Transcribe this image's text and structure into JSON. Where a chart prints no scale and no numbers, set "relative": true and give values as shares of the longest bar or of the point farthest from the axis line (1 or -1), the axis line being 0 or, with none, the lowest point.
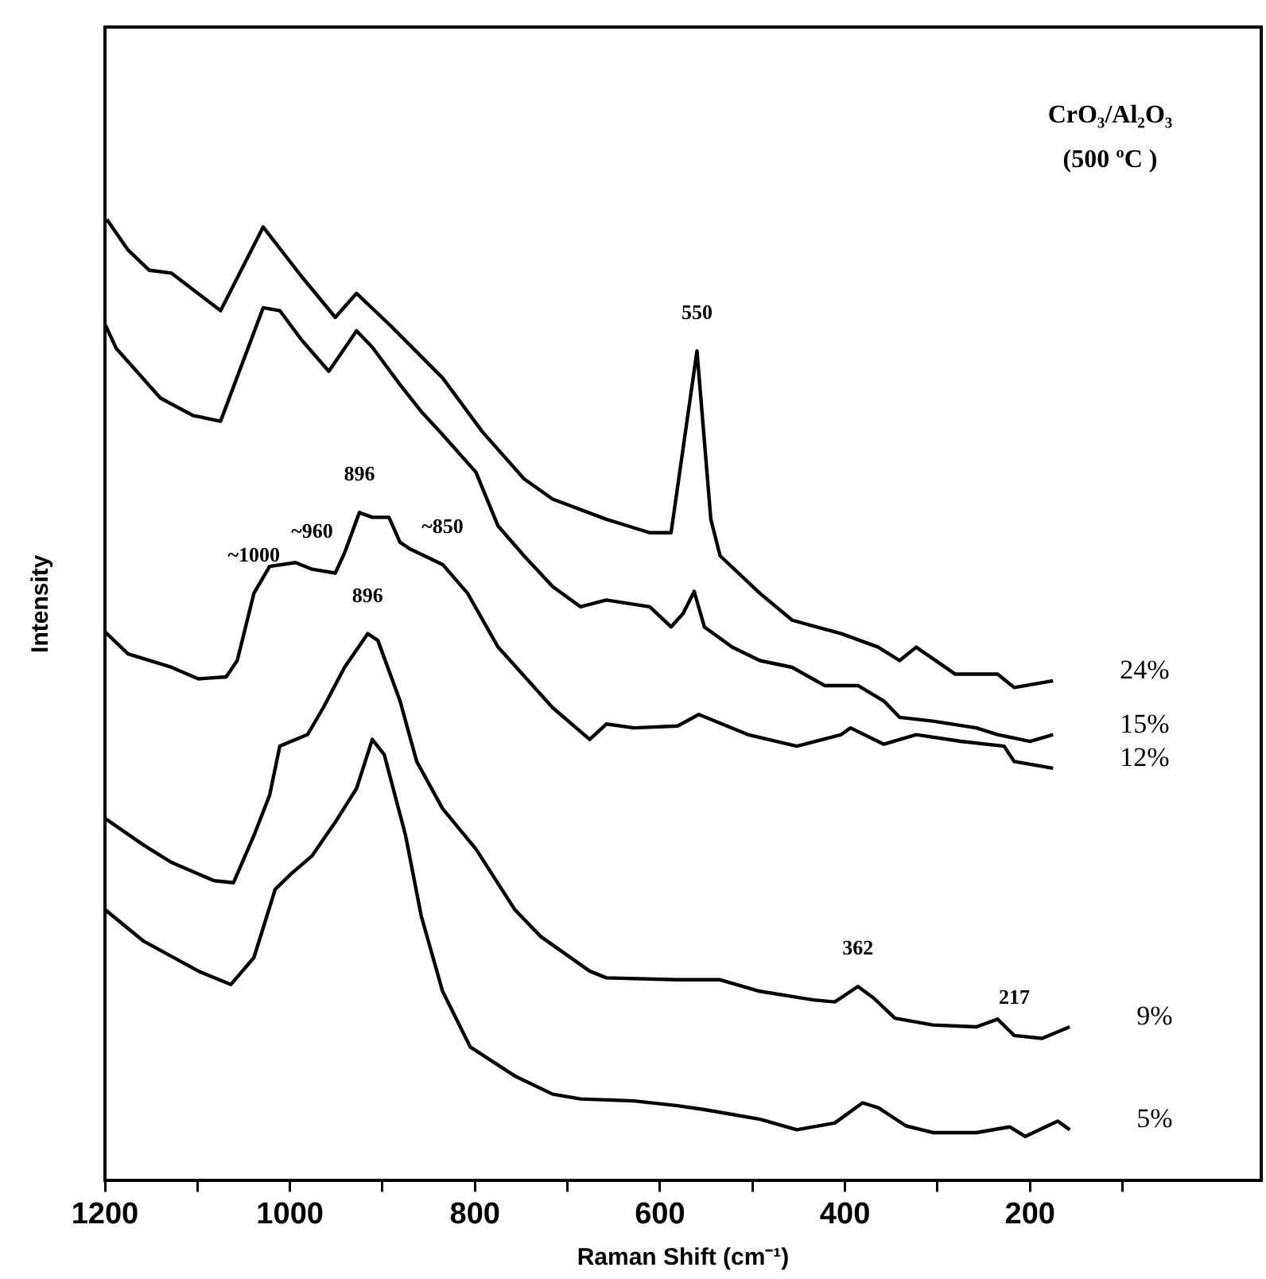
{
  "chart_data": {
    "type": "line",
    "title": "CrO₃/Al₂O₃",
    "subtitle": "(500 ºC )",
    "xlabel": "Raman Shift (cm⁻¹)",
    "ylabel": "Intensity",
    "relative": true,
    "xlim": [
      1200,
      -50
    ],
    "xticks": [
      1200,
      {
        "value": 1100,
        "label": null
      },
      1000,
      {
        "value": 900,
        "label": null
      },
      800,
      {
        "value": 700,
        "label": null
      },
      600,
      {
        "value": 500,
        "label": null
      },
      400,
      {
        "value": 300,
        "label": null
      },
      200,
      {
        "value": 100,
        "label": null
      }
    ],
    "grid": false,
    "legend": false,
    "marker": "none",
    "line_style": "solid",
    "series": [
      {
        "name": "24%",
        "color": "#000000",
        "x": [
          1198,
          1175,
          1152,
          1128,
          1075,
          1029,
          987,
          951,
          928,
          893,
          835,
          792,
          747,
          716,
          658,
          611,
          588,
          560,
          545,
          535,
          492,
          457,
          404,
          364,
          341,
          323,
          281,
          235,
          217,
          175
        ],
        "values": [
          1.0,
          0.968,
          0.947,
          0.944,
          0.905,
          0.992,
          0.94,
          0.898,
          0.923,
          0.891,
          0.835,
          0.779,
          0.73,
          0.709,
          0.688,
          0.674,
          0.674,
          0.863,
          0.688,
          0.65,
          0.611,
          0.583,
          0.569,
          0.555,
          0.541,
          0.555,
          0.527,
          0.527,
          0.513,
          0.52
        ]
      },
      {
        "name": "15%",
        "color": "#000000",
        "x": [
          1200,
          1188,
          1140,
          1105,
          1075,
          1029,
          1011,
          987,
          958,
          928,
          911,
          881,
          858,
          835,
          799,
          775,
          747,
          716,
          686,
          658,
          611,
          588,
          575,
          563,
          552,
          522,
          492,
          457,
          422,
          386,
          358,
          341,
          305,
          258,
          235,
          200,
          175
        ],
        "values": [
          0.891,
          0.866,
          0.814,
          0.796,
          0.79,
          0.908,
          0.905,
          0.874,
          0.842,
          0.884,
          0.867,
          0.828,
          0.8,
          0.776,
          0.737,
          0.681,
          0.65,
          0.618,
          0.597,
          0.604,
          0.597,
          0.576,
          0.59,
          0.613,
          0.576,
          0.555,
          0.541,
          0.534,
          0.515,
          0.515,
          0.499,
          0.482,
          0.478,
          0.471,
          0.464,
          0.457,
          0.464
        ]
      },
      {
        "name": "12%",
        "color": "#000000",
        "x": [
          1200,
          1175,
          1128,
          1099,
          1069,
          1057,
          1039,
          1022,
          994,
          976,
          951,
          941,
          925,
          911,
          893,
          881,
          870,
          835,
          808,
          775,
          716,
          676,
          658,
          628,
          581,
          558,
          505,
          452,
          404,
          394,
          358,
          323,
          275,
          228,
          217,
          175
        ],
        "values": [
          0.571,
          0.548,
          0.534,
          0.522,
          0.524,
          0.541,
          0.611,
          0.639,
          0.643,
          0.636,
          0.632,
          0.653,
          0.695,
          0.69,
          0.69,
          0.664,
          0.657,
          0.641,
          0.611,
          0.555,
          0.492,
          0.459,
          0.475,
          0.471,
          0.473,
          0.485,
          0.464,
          0.452,
          0.464,
          0.471,
          0.454,
          0.464,
          0.457,
          0.452,
          0.436,
          0.429
        ]
      },
      {
        "name": "9%",
        "color": "#000000",
        "x": [
          1200,
          1158,
          1128,
          1082,
          1061,
          1039,
          1022,
          1011,
          981,
          964,
          941,
          916,
          905,
          881,
          863,
          835,
          799,
          757,
          729,
          676,
          658,
          581,
          535,
          492,
          434,
          411,
          386,
          369,
          346,
          305,
          258,
          235,
          217,
          187,
          157
        ],
        "values": [
          0.377,
          0.349,
          0.331,
          0.312,
          0.31,
          0.359,
          0.401,
          0.452,
          0.464,
          0.492,
          0.534,
          0.569,
          0.562,
          0.499,
          0.436,
          0.387,
          0.345,
          0.282,
          0.254,
          0.218,
          0.211,
          0.209,
          0.209,
          0.197,
          0.188,
          0.186,
          0.202,
          0.19,
          0.169,
          0.162,
          0.16,
          0.168,
          0.151,
          0.148,
          0.16
        ]
      },
      {
        "name": "5%",
        "color": "#000000",
        "x": [
          1200,
          1158,
          1099,
          1064,
          1039,
          1016,
          999,
          976,
          951,
          928,
          911,
          898,
          875,
          858,
          835,
          805,
          757,
          716,
          686,
          628,
          581,
          552,
          492,
          452,
          411,
          381,
          364,
          334,
          305,
          258,
          222,
          205,
          170,
          157
        ],
        "values": [
          0.282,
          0.249,
          0.218,
          0.204,
          0.232,
          0.303,
          0.319,
          0.338,
          0.373,
          0.408,
          0.459,
          0.443,
          0.359,
          0.275,
          0.197,
          0.139,
          0.109,
          0.09,
          0.085,
          0.083,
          0.078,
          0.074,
          0.064,
          0.053,
          0.06,
          0.081,
          0.076,
          0.057,
          0.05,
          0.05,
          0.056,
          0.046,
          0.062,
          0.053
        ]
      }
    ],
    "annotations": [
      {
        "text": "550",
        "x": 560,
        "y": 0.863
      },
      {
        "text": "~1000",
        "x": 1039,
        "y": 0.611
      },
      {
        "text": "~960",
        "x": 976,
        "y": 0.636
      },
      {
        "text": "896",
        "x": 925,
        "y": 0.695
      },
      {
        "text": "~850",
        "x": 835,
        "y": 0.641
      },
      {
        "text": "896",
        "x": 916,
        "y": 0.569
      },
      {
        "text": "362",
        "x": 386,
        "y": 0.202
      },
      {
        "text": "217",
        "x": 217,
        "y": 0.151
      }
    ]
  }
}
